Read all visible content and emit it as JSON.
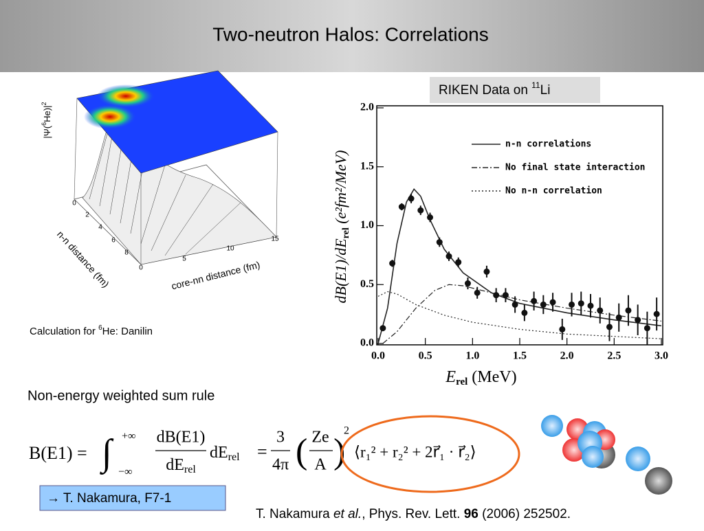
{
  "title": "Two-neutron Halos: Correlations",
  "riken": {
    "text": "RIKEN Data on ",
    "sup": "11",
    "tail": "Li"
  },
  "calc": {
    "text": "Calculation for ",
    "sup": "6",
    "tail": "He: Danilin"
  },
  "surface": {
    "z_label": {
      "text": "|Ψ(",
      "sup": "6",
      "tail": "He)|",
      "sup2": "2"
    },
    "nn_label": "n-n distance (fm)",
    "core_label": "core-nn distance (fm)",
    "nn_ticks": [
      "0",
      "2",
      "4",
      "6",
      "8"
    ],
    "core_ticks": [
      "0",
      "5",
      "10",
      "15"
    ]
  },
  "sum_rule": "Non-energy weighted sum rule",
  "formula": {
    "lhs": "B(E1) =",
    "int": "∫",
    "upper": "+∞",
    "lower": "−∞",
    "num": "dB(E1)",
    "den": "dE",
    "den_sub": "rel",
    "d": "dE",
    "d_sub": "rel",
    "eq": "=",
    "n3": "3",
    "d4": "4π",
    "lp": "(",
    "ze": "Ze",
    "a": "A",
    "rp": ")",
    "pow": "2",
    "bracket": "⟨r₁² + r₂² + 2r⃗₁ · r⃗₂⟩"
  },
  "ref_box": "→ T. Nakamura, F7-1",
  "citation": {
    "a": "T. Nakamura ",
    "b": "et al.",
    "c": ", Phys. Rev. Lett. ",
    "d": "96",
    "e": " (2006) 252502."
  },
  "chart_data": {
    "type": "scatter",
    "x_label": {
      "symbol": "E",
      "sub": "rel",
      "unit": " (MeV)"
    },
    "y_label": {
      "text": "dB(E1)/dE",
      "sub": "rel",
      "unit": "  (e²fm²/MeV)"
    },
    "xlim": [
      0,
      3
    ],
    "ylim": [
      0,
      2
    ],
    "xticks": [
      {
        "value": 0,
        "label": "0.0"
      },
      0.5,
      {
        "value": 1,
        "label": "1.0"
      },
      1.5,
      {
        "value": 2,
        "label": "2.0"
      },
      2.5,
      {
        "value": 3,
        "label": "3.0"
      }
    ],
    "yticks": [
      {
        "value": 0,
        "label": "0.0"
      },
      0.5,
      {
        "value": 1,
        "label": "1.0"
      },
      1.5,
      {
        "value": 2,
        "label": "2.0"
      }
    ],
    "color": "#111",
    "x": [
      0.05,
      0.15,
      0.25,
      0.35,
      0.45,
      0.55,
      0.65,
      0.75,
      0.85,
      0.95,
      1.05,
      1.15,
      1.25,
      1.35,
      1.45,
      1.55,
      1.65,
      1.75,
      1.85,
      1.95,
      2.05,
      2.15,
      2.25,
      2.35,
      2.45,
      2.55,
      2.65,
      2.75,
      2.85,
      2.95
    ],
    "values": [
      0.13,
      0.68,
      1.16,
      1.23,
      1.13,
      1.07,
      0.86,
      0.74,
      0.69,
      0.51,
      0.43,
      0.61,
      0.41,
      0.41,
      0.33,
      0.26,
      0.36,
      0.33,
      0.35,
      0.12,
      0.33,
      0.34,
      0.32,
      0.28,
      0.14,
      0.22,
      0.28,
      0.2,
      0.13,
      0.25
    ],
    "errors": [
      0.02,
      0.03,
      0.03,
      0.04,
      0.04,
      0.04,
      0.04,
      0.04,
      0.04,
      0.05,
      0.05,
      0.05,
      0.06,
      0.06,
      0.07,
      0.07,
      0.08,
      0.08,
      0.08,
      0.09,
      0.1,
      0.1,
      0.1,
      0.11,
      0.12,
      0.12,
      0.13,
      0.13,
      0.14,
      0.14
    ],
    "series": [
      {
        "name": "n-n correlations",
        "style": "solid",
        "color": "#222",
        "x": [
          0,
          0.1,
          0.2,
          0.3,
          0.38,
          0.45,
          0.55,
          0.7,
          0.9,
          1.2,
          1.5,
          2.0,
          2.5,
          3.0
        ],
        "values": [
          0,
          0.3,
          0.85,
          1.2,
          1.31,
          1.25,
          1.05,
          0.8,
          0.6,
          0.43,
          0.34,
          0.26,
          0.2,
          0.15
        ]
      },
      {
        "name": "No final state interaction",
        "style": "dash-dot",
        "color": "#222",
        "x": [
          0.05,
          0.2,
          0.4,
          0.6,
          0.75,
          0.9,
          1.2,
          1.5,
          2.0,
          2.5,
          3.0
        ],
        "values": [
          0,
          0.1,
          0.3,
          0.45,
          0.5,
          0.49,
          0.43,
          0.37,
          0.3,
          0.24,
          0.19
        ]
      },
      {
        "name": "No n-n correlation",
        "style": "dotted",
        "color": "#222",
        "x": [
          0,
          0.1,
          0.2,
          0.4,
          0.7,
          1.0,
          1.5,
          2.0,
          2.5,
          3.0
        ],
        "values": [
          0.4,
          0.44,
          0.42,
          0.33,
          0.24,
          0.18,
          0.12,
          0.08,
          0.06,
          0.04
        ]
      }
    ]
  }
}
